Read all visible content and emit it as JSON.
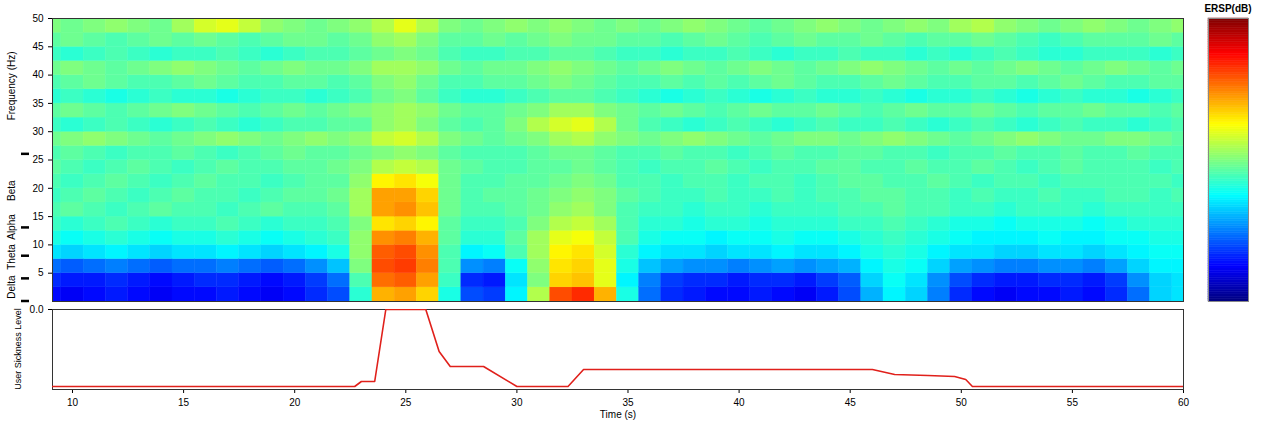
{
  "chart_data": [
    {
      "type": "heatmap",
      "ylabel": "Frequency (Hz)",
      "x_bins": [
        8.5,
        9.5,
        10.5,
        11.5,
        12.5,
        13.5,
        14.5,
        15.5,
        16.5,
        17.5,
        18.5,
        19.5,
        20.5,
        21.5,
        22.5,
        23.5,
        24.5,
        25.5,
        26.5,
        27.5,
        28.5,
        29.5,
        30.5,
        31.5,
        32.5,
        33.5,
        34.5,
        35.5,
        36.5,
        37.5,
        38.5,
        39.5,
        40.5,
        41.5,
        42.5,
        43.5,
        44.5,
        45.5,
        46.5,
        47.5,
        48.5,
        49.5,
        50.5,
        51.5,
        52.5,
        53.5,
        54.5,
        55.5,
        56.5,
        57.5,
        58.5,
        59.5,
        60.5
      ],
      "y_bins": [
        0,
        2.5,
        5,
        7.5,
        10,
        12.5,
        15,
        17.5,
        20,
        22.5,
        25,
        27.5,
        30,
        32.5,
        35,
        37.5,
        40,
        42.5,
        45,
        47.5,
        50
      ],
      "values": [
        [
          -2.2,
          -2.3,
          -2.2,
          -2.1,
          -2.2,
          -2.3,
          -2.2,
          -2.2,
          -2.1,
          -2.2,
          -2.3,
          -2.2,
          -2.0,
          -1.8,
          -0.5,
          1.2,
          1.3,
          1.0,
          -0.6,
          -1.8,
          -1.9,
          -0.8,
          0.3,
          1.8,
          2.0,
          1.2,
          -0.6,
          -1.6,
          -2.0,
          -2.1,
          -2.2,
          -2.2,
          -2.1,
          -2.2,
          -2.3,
          -2.1,
          -1.8,
          -1.2,
          -0.8,
          -1.0,
          -1.5,
          -2.0,
          -2.2,
          -2.3,
          -2.2,
          -2.2,
          -2.1,
          -2.2,
          -2.0,
          -1.6,
          -1.0,
          -0.9
        ],
        [
          -2.0,
          -2.1,
          -2.1,
          -2.0,
          -2.1,
          -2.2,
          -2.1,
          -2.0,
          -2.0,
          -2.1,
          -2.2,
          -2.1,
          -1.9,
          -1.6,
          -0.3,
          1.6,
          1.7,
          1.3,
          -0.4,
          -2.0,
          -2.1,
          -0.9,
          0.0,
          1.0,
          1.1,
          0.6,
          -0.8,
          -1.5,
          -1.9,
          -2.0,
          -2.0,
          -2.1,
          -2.0,
          -2.0,
          -2.1,
          -1.9,
          -1.7,
          -1.0,
          -0.7,
          -0.9,
          -1.4,
          -1.8,
          -2.0,
          -2.1,
          -2.1,
          -2.0,
          -2.0,
          -2.1,
          -1.9,
          -1.4,
          -1.0,
          -0.9
        ],
        [
          -1.6,
          -1.7,
          -1.6,
          -1.5,
          -1.6,
          -1.7,
          -1.6,
          -1.6,
          -1.5,
          -1.6,
          -1.7,
          -1.6,
          -1.4,
          -1.1,
          0.0,
          1.8,
          1.9,
          1.5,
          -0.3,
          -1.4,
          -1.5,
          -0.7,
          0.1,
          0.9,
          1.0,
          0.6,
          -0.6,
          -1.1,
          -1.3,
          -1.4,
          -1.4,
          -1.5,
          -1.4,
          -1.3,
          -1.4,
          -1.3,
          -1.2,
          -0.8,
          -0.6,
          -0.7,
          -1.0,
          -1.3,
          -1.4,
          -1.5,
          -1.5,
          -1.4,
          -1.4,
          -1.5,
          -1.3,
          -1.0,
          -0.8,
          -0.8
        ],
        [
          -0.9,
          -1.0,
          -0.9,
          -0.8,
          -0.9,
          -1.0,
          -0.9,
          -0.9,
          -0.8,
          -0.9,
          -1.0,
          -0.9,
          -0.8,
          -0.6,
          0.1,
          1.7,
          1.8,
          1.4,
          -0.3,
          -0.8,
          -0.7,
          -0.3,
          0.2,
          0.8,
          0.9,
          0.5,
          -0.5,
          -0.8,
          -0.9,
          -0.9,
          -1.0,
          -0.9,
          -0.9,
          -0.8,
          -0.9,
          -0.9,
          -0.8,
          -0.6,
          -0.5,
          -0.6,
          -0.8,
          -0.9,
          -0.9,
          -1.0,
          -1.0,
          -0.9,
          -0.9,
          -1.0,
          -0.9,
          -0.8,
          -0.7,
          -0.7
        ],
        [
          -0.6,
          -0.7,
          -0.6,
          -0.5,
          -0.6,
          -0.7,
          -0.6,
          -0.6,
          -0.5,
          -0.6,
          -0.7,
          -0.6,
          -0.5,
          -0.4,
          0.1,
          1.4,
          1.5,
          1.2,
          -0.2,
          -0.5,
          -0.5,
          -0.2,
          0.2,
          0.6,
          0.7,
          0.4,
          -0.3,
          -0.6,
          -0.7,
          -0.7,
          -0.8,
          -0.7,
          -0.7,
          -0.6,
          -0.7,
          -0.7,
          -0.6,
          -0.5,
          -0.4,
          -0.5,
          -0.6,
          -0.7,
          -0.8,
          -0.8,
          -0.8,
          -0.7,
          -0.8,
          -0.8,
          -0.7,
          -0.7,
          -0.6,
          -0.6
        ],
        [
          -0.4,
          -0.5,
          -0.4,
          -0.3,
          -0.4,
          -0.5,
          -0.4,
          -0.4,
          -0.3,
          -0.4,
          -0.5,
          -0.4,
          -0.4,
          -0.3,
          0.0,
          0.9,
          1.0,
          0.8,
          -0.2,
          -0.4,
          -0.4,
          -0.3,
          0.0,
          0.3,
          0.4,
          0.2,
          -0.3,
          -0.5,
          -0.5,
          -0.6,
          -0.5,
          -0.5,
          -0.6,
          -0.5,
          -0.5,
          -0.5,
          -0.4,
          -0.4,
          -0.3,
          -0.4,
          -0.5,
          -0.6,
          -0.6,
          -0.7,
          -0.6,
          -0.6,
          -0.6,
          -0.7,
          -0.6,
          -0.5,
          -0.5,
          -0.5
        ],
        [
          -0.3,
          -0.2,
          -0.3,
          -0.4,
          -0.3,
          -0.2,
          -0.3,
          -0.3,
          -0.4,
          -0.3,
          -0.2,
          -0.3,
          -0.3,
          -0.2,
          0.2,
          1.3,
          1.4,
          1.1,
          -0.1,
          -0.3,
          -0.3,
          -0.2,
          -0.1,
          0.1,
          0.2,
          0.0,
          -0.3,
          -0.4,
          -0.4,
          -0.5,
          -0.4,
          -0.4,
          -0.5,
          -0.4,
          -0.4,
          -0.4,
          -0.3,
          -0.3,
          -0.2,
          -0.3,
          -0.3,
          -0.4,
          -0.4,
          -0.5,
          -0.4,
          -0.4,
          -0.4,
          -0.5,
          -0.4,
          -0.4,
          -0.4,
          -0.4
        ],
        [
          -0.4,
          -0.3,
          -0.2,
          -0.3,
          -0.4,
          -0.3,
          -0.2,
          -0.3,
          -0.3,
          -0.4,
          -0.3,
          -0.2,
          -0.2,
          -0.1,
          0.2,
          1.3,
          1.3,
          1.0,
          -0.1,
          -0.3,
          -0.2,
          -0.2,
          -0.1,
          0.0,
          0.1,
          0.0,
          -0.2,
          -0.3,
          -0.4,
          -0.4,
          -0.3,
          -0.4,
          -0.4,
          -0.3,
          -0.4,
          -0.3,
          -0.3,
          -0.2,
          -0.2,
          -0.3,
          -0.3,
          -0.4,
          -0.3,
          -0.4,
          -0.4,
          -0.3,
          -0.4,
          -0.4,
          -0.3,
          -0.3,
          -0.4,
          -0.3
        ],
        [
          -0.3,
          -0.4,
          -0.3,
          -0.2,
          -0.3,
          -0.4,
          -0.3,
          -0.2,
          -0.3,
          -0.3,
          -0.4,
          -0.3,
          -0.2,
          -0.2,
          0.1,
          0.8,
          0.9,
          0.7,
          -0.1,
          -0.3,
          -0.3,
          -0.2,
          -0.2,
          -0.1,
          0.0,
          -0.1,
          -0.3,
          -0.3,
          -0.4,
          -0.3,
          -0.3,
          -0.4,
          -0.3,
          -0.3,
          -0.4,
          -0.3,
          -0.2,
          -0.2,
          -0.3,
          -0.3,
          -0.2,
          -0.3,
          -0.4,
          -0.3,
          -0.3,
          -0.4,
          -0.3,
          -0.3,
          -0.3,
          -0.3,
          -0.3,
          -0.4
        ],
        [
          -0.2,
          -0.3,
          -0.4,
          -0.3,
          -0.2,
          -0.3,
          -0.4,
          -0.3,
          -0.2,
          -0.3,
          -0.3,
          -0.2,
          -0.2,
          -0.1,
          0.0,
          0.3,
          0.4,
          0.3,
          -0.1,
          -0.2,
          -0.3,
          -0.3,
          -0.2,
          -0.2,
          -0.1,
          -0.2,
          -0.3,
          -0.4,
          -0.3,
          -0.3,
          -0.2,
          -0.3,
          -0.4,
          -0.3,
          -0.3,
          -0.2,
          -0.2,
          -0.3,
          -0.3,
          -0.2,
          -0.3,
          -0.3,
          -0.2,
          -0.3,
          -0.4,
          -0.3,
          -0.2,
          -0.3,
          -0.3,
          -0.3,
          -0.4,
          -0.3
        ],
        [
          -0.3,
          -0.2,
          -0.3,
          -0.4,
          -0.3,
          -0.3,
          -0.2,
          -0.3,
          -0.4,
          -0.3,
          -0.2,
          -0.1,
          -0.2,
          -0.2,
          -0.1,
          0.0,
          0.1,
          0.0,
          -0.2,
          -0.3,
          -0.3,
          -0.3,
          -0.2,
          -0.1,
          -0.1,
          -0.2,
          -0.3,
          -0.3,
          -0.2,
          -0.3,
          -0.3,
          -0.4,
          -0.3,
          -0.2,
          -0.3,
          -0.3,
          -0.2,
          -0.2,
          -0.3,
          -0.3,
          -0.4,
          -0.3,
          -0.3,
          -0.2,
          -0.3,
          -0.3,
          -0.2,
          -0.3,
          -0.3,
          -0.2,
          -0.3,
          -0.3
        ],
        [
          -0.1,
          0.0,
          0.1,
          0.0,
          -0.1,
          -0.2,
          -0.1,
          0.0,
          0.1,
          0.0,
          -0.1,
          0.0,
          0.1,
          0.0,
          0.1,
          0.4,
          0.5,
          0.3,
          0.0,
          -0.1,
          -0.2,
          -0.1,
          0.0,
          0.2,
          0.3,
          0.1,
          0.0,
          -0.1,
          0.0,
          0.1,
          0.0,
          -0.1,
          -0.2,
          -0.1,
          0.0,
          0.0,
          -0.1,
          0.0,
          0.1,
          0.0,
          -0.1,
          -0.2,
          -0.1,
          0.0,
          0.1,
          0.0,
          -0.1,
          -0.1,
          0.0,
          0.0,
          -0.1,
          -0.2
        ],
        [
          -0.4,
          -0.5,
          -0.4,
          -0.3,
          -0.4,
          -0.5,
          -0.4,
          -0.3,
          -0.4,
          -0.5,
          -0.4,
          -0.3,
          -0.3,
          -0.2,
          -0.2,
          0.1,
          0.2,
          0.0,
          -0.2,
          -0.3,
          -0.2,
          0.0,
          0.3,
          0.5,
          0.6,
          0.3,
          -0.1,
          -0.3,
          -0.4,
          -0.5,
          -0.4,
          -0.3,
          -0.4,
          -0.5,
          -0.4,
          -0.3,
          -0.4,
          -0.4,
          -0.3,
          -0.4,
          -0.5,
          -0.4,
          -0.3,
          -0.4,
          -0.5,
          -0.4,
          -0.3,
          -0.4,
          -0.4,
          -0.5,
          -0.4,
          -0.3
        ],
        [
          -0.2,
          -0.1,
          -0.2,
          -0.3,
          -0.2,
          -0.1,
          0.0,
          -0.1,
          -0.2,
          -0.3,
          -0.2,
          -0.1,
          -0.2,
          -0.1,
          0.0,
          0.1,
          0.2,
          0.1,
          -0.1,
          -0.2,
          -0.2,
          -0.1,
          0.0,
          0.2,
          0.2,
          0.0,
          -0.1,
          -0.2,
          -0.1,
          -0.2,
          -0.3,
          -0.2,
          -0.1,
          -0.2,
          -0.2,
          -0.1,
          -0.2,
          -0.3,
          -0.2,
          -0.1,
          -0.2,
          -0.2,
          -0.1,
          -0.2,
          -0.3,
          -0.2,
          -0.2,
          -0.1,
          -0.2,
          -0.2,
          -0.3,
          -0.2
        ],
        [
          -0.5,
          -0.4,
          -0.5,
          -0.6,
          -0.5,
          -0.4,
          -0.5,
          -0.5,
          -0.6,
          -0.5,
          -0.4,
          -0.4,
          -0.5,
          -0.4,
          -0.3,
          -0.1,
          0.0,
          -0.2,
          -0.4,
          -0.5,
          -0.5,
          -0.4,
          -0.3,
          -0.2,
          -0.2,
          -0.3,
          -0.4,
          -0.5,
          -0.6,
          -0.5,
          -0.4,
          -0.5,
          -0.6,
          -0.5,
          -0.4,
          -0.5,
          -0.5,
          -0.4,
          -0.5,
          -0.6,
          -0.5,
          -0.5,
          -0.4,
          -0.5,
          -0.6,
          -0.5,
          -0.4,
          -0.5,
          -0.5,
          -0.6,
          -0.5,
          -0.4
        ],
        [
          -0.3,
          -0.2,
          -0.1,
          -0.2,
          -0.3,
          -0.3,
          -0.2,
          -0.1,
          -0.2,
          -0.3,
          -0.3,
          -0.2,
          -0.2,
          -0.3,
          -0.2,
          0.0,
          0.1,
          -0.1,
          -0.3,
          -0.3,
          -0.2,
          -0.2,
          -0.1,
          0.0,
          -0.1,
          -0.2,
          -0.3,
          -0.3,
          -0.2,
          -0.3,
          -0.2,
          -0.3,
          -0.2,
          -0.1,
          -0.2,
          -0.3,
          -0.3,
          -0.2,
          -0.1,
          -0.2,
          -0.3,
          -0.3,
          -0.2,
          -0.2,
          -0.3,
          -0.2,
          -0.1,
          -0.2,
          -0.3,
          -0.3,
          -0.2,
          -0.2
        ],
        [
          -0.1,
          0.0,
          -0.1,
          -0.2,
          -0.1,
          0.0,
          0.1,
          0.0,
          -0.1,
          -0.2,
          -0.1,
          0.0,
          -0.1,
          -0.1,
          0.0,
          0.2,
          0.2,
          0.1,
          -0.1,
          -0.2,
          -0.1,
          -0.1,
          0.0,
          0.1,
          0.0,
          -0.1,
          -0.2,
          -0.1,
          0.0,
          -0.1,
          -0.2,
          -0.1,
          0.0,
          -0.1,
          -0.2,
          -0.1,
          0.0,
          0.1,
          0.0,
          -0.1,
          -0.2,
          -0.1,
          -0.2,
          -0.1,
          0.0,
          -0.1,
          -0.2,
          -0.1,
          0.0,
          -0.1,
          -0.2,
          -0.1
        ],
        [
          -0.4,
          -0.5,
          -0.4,
          -0.3,
          -0.4,
          -0.5,
          -0.4,
          -0.4,
          -0.3,
          -0.4,
          -0.5,
          -0.4,
          -0.3,
          -0.3,
          -0.2,
          -0.1,
          0.0,
          -0.1,
          -0.3,
          -0.4,
          -0.4,
          -0.3,
          -0.3,
          -0.2,
          -0.2,
          -0.3,
          -0.4,
          -0.4,
          -0.5,
          -0.4,
          -0.4,
          -0.3,
          -0.4,
          -0.5,
          -0.4,
          -0.4,
          -0.3,
          -0.4,
          -0.4,
          -0.5,
          -0.4,
          -0.5,
          -0.4,
          -0.3,
          -0.4,
          -0.5,
          -0.5,
          -0.4,
          -0.4,
          -0.4,
          -0.5,
          -0.4
        ],
        [
          -0.2,
          -0.1,
          -0.2,
          -0.3,
          -0.2,
          -0.1,
          -0.2,
          -0.1,
          -0.2,
          -0.3,
          -0.2,
          -0.1,
          -0.1,
          -0.2,
          -0.1,
          0.1,
          0.2,
          0.0,
          -0.2,
          -0.2,
          -0.1,
          -0.2,
          -0.1,
          0.0,
          -0.1,
          -0.1,
          -0.2,
          -0.2,
          -0.3,
          -0.2,
          -0.1,
          -0.2,
          -0.3,
          -0.2,
          -0.1,
          -0.2,
          -0.2,
          -0.1,
          -0.2,
          -0.3,
          -0.2,
          -0.2,
          -0.1,
          -0.2,
          -0.3,
          -0.4,
          -0.3,
          -0.2,
          -0.2,
          -0.2,
          -0.1,
          -0.2
        ],
        [
          0.0,
          -0.1,
          0.0,
          0.1,
          0.0,
          -0.1,
          0.2,
          0.5,
          0.6,
          0.4,
          0.1,
          0.0,
          -0.1,
          0.0,
          0.1,
          0.3,
          0.6,
          0.3,
          0.0,
          -0.1,
          0.0,
          0.1,
          0.0,
          0.1,
          0.0,
          -0.1,
          0.0,
          -0.1,
          0.0,
          0.1,
          0.0,
          -0.1,
          -0.2,
          -0.1,
          0.0,
          0.1,
          0.0,
          -0.1,
          0.0,
          0.1,
          0.0,
          0.2,
          0.3,
          0.1,
          0.0,
          -0.1,
          0.0,
          0.1,
          0.0,
          -0.1,
          0.0,
          0.1
        ]
      ],
      "xlim": [
        9.1,
        60
      ],
      "ylim": [
        0,
        50
      ],
      "yticks": [
        5,
        10,
        15,
        20,
        25,
        30,
        35,
        40,
        45,
        50
      ],
      "tick_labels": "y",
      "bands": [
        {
          "label": "Delta",
          "lim": [
            0,
            4
          ]
        },
        {
          "label": "Theta",
          "lim": [
            4,
            8
          ]
        },
        {
          "label": "Alpha",
          "lim": [
            8,
            13
          ]
        },
        {
          "label": "Beta",
          "lim": [
            13,
            26
          ]
        }
      ],
      "colorbar": {
        "title": "ERSP(dB)",
        "lim": [
          -3,
          3
        ]
      }
    },
    {
      "type": "line",
      "xlabel": "Time (s)",
      "ylabel": "User Sickness Level",
      "x": [
        9.1,
        22.7,
        23.0,
        23.6,
        24.1,
        25.9,
        26.5,
        27.0,
        28.5,
        30.0,
        32.3,
        33.0,
        46.0,
        47.0,
        48.5,
        49.7,
        50.2,
        50.5,
        60
      ],
      "values": [
        -3.85,
        -3.85,
        -3.6,
        -3.6,
        0,
        0,
        -2.1,
        -2.85,
        -2.85,
        -3.85,
        -3.85,
        -3.0,
        -3.0,
        -3.25,
        -3.3,
        -3.35,
        -3.5,
        -3.85,
        -3.85
      ],
      "color": "#e0201b",
      "xlim": [
        9.1,
        60
      ],
      "xticks": [
        10,
        15,
        20,
        25,
        30,
        35,
        40,
        45,
        50,
        55,
        60
      ],
      "ylim": [
        -4,
        0
      ],
      "yticks": [
        0
      ]
    }
  ]
}
